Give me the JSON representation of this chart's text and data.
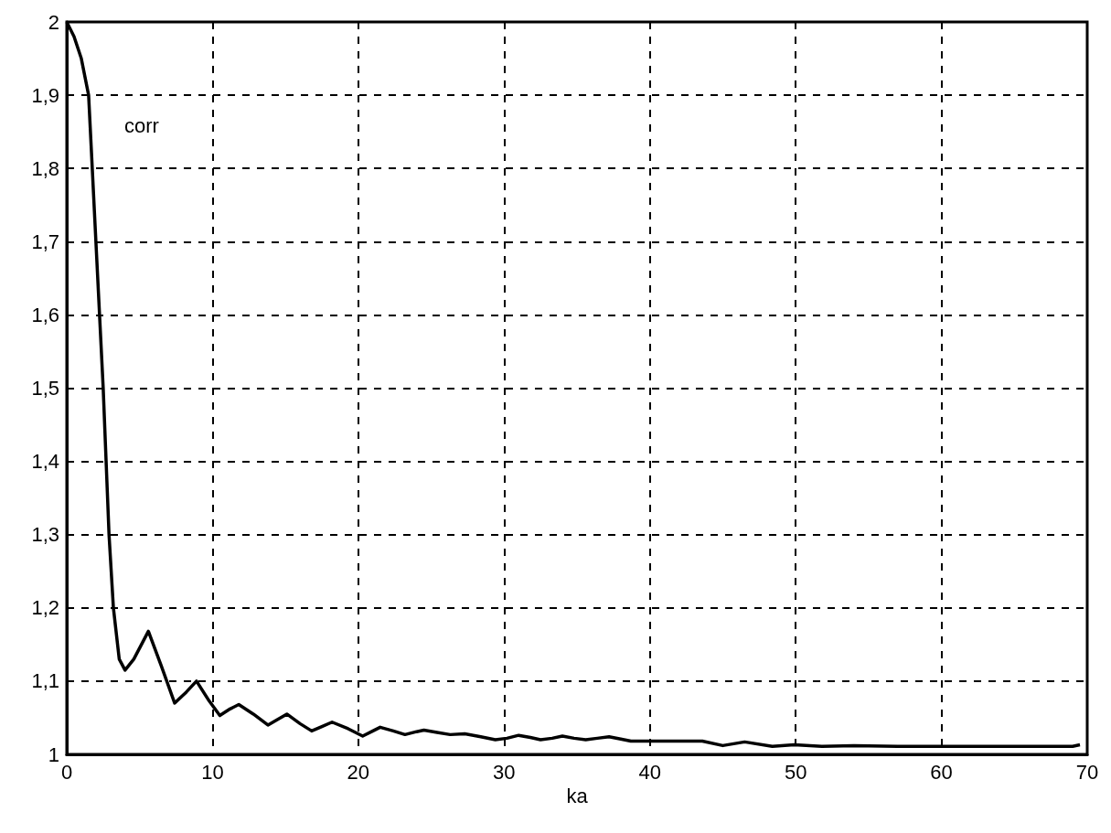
{
  "chart_data": {
    "type": "line",
    "xlabel": "ka",
    "annotations": [
      "corr"
    ],
    "x": [
      0,
      0.5,
      1,
      1.5,
      1.75,
      2,
      2.5,
      2.9,
      3.2,
      3.6,
      4,
      4.6,
      5.6,
      6.5,
      7.4,
      8.2,
      8.9,
      9.7,
      10.5,
      11.2,
      11.8,
      12.8,
      13.8,
      14.5,
      15.1,
      16,
      16.8,
      17.5,
      18.2,
      19.3,
      20.3,
      21,
      21.5,
      22.4,
      23.2,
      24,
      24.5,
      25.4,
      26.3,
      27.3,
      28.4,
      29.4,
      30.2,
      31,
      31.8,
      32.5,
      33.3,
      34,
      34.8,
      35.6,
      36.4,
      37.2,
      38,
      38.7,
      41,
      43.6,
      45,
      46.5,
      48.4,
      49.9,
      51.8,
      54,
      57,
      60,
      63,
      66,
      69,
      69.5
    ],
    "series": [
      {
        "color": "#000000",
        "values": [
          2,
          1.98,
          1.95,
          1.9,
          1.8,
          1.7,
          1.5,
          1.3,
          1.2,
          1.13,
          1.115,
          1.13,
          1.168,
          1.12,
          1.07,
          1.085,
          1.1,
          1.075,
          1.053,
          1.062,
          1.068,
          1.055,
          1.04,
          1.048,
          1.055,
          1.042,
          1.032,
          1.038,
          1.044,
          1.035,
          1.025,
          1.032,
          1.037,
          1.032,
          1.027,
          1.031,
          1.033,
          1.03,
          1.027,
          1.028,
          1.024,
          1.02,
          1.022,
          1.026,
          1.023,
          1.02,
          1.022,
          1.025,
          1.022,
          1.02,
          1.022,
          1.024,
          1.021,
          1.018,
          1.018,
          1.018,
          1.012,
          1.017,
          1.011,
          1.013,
          1.011,
          1.012,
          1.011,
          1.011,
          1.011,
          1.011,
          1.011,
          1.013
        ]
      }
    ],
    "xlim": [
      0,
      70
    ],
    "xticks": [
      0,
      10,
      20,
      30,
      40,
      50,
      60,
      70
    ],
    "ylim": [
      1,
      2
    ],
    "yticks": [
      {
        "value": 1,
        "label": "1"
      },
      {
        "value": 1.1,
        "label": "1,1"
      },
      {
        "value": 1.2,
        "label": "1,2"
      },
      {
        "value": 1.3,
        "label": "1,3"
      },
      {
        "value": 1.4,
        "label": "1,4"
      },
      {
        "value": 1.5,
        "label": "1,5"
      },
      {
        "value": 1.6,
        "label": "1,6"
      },
      {
        "value": 1.7,
        "label": "1,7"
      },
      {
        "value": 1.8,
        "label": "1,8"
      },
      {
        "value": 1.9,
        "label": "1,9"
      },
      {
        "value": 2,
        "label": "2"
      }
    ],
    "grid": true,
    "marker": "none",
    "line_style": "solid"
  }
}
